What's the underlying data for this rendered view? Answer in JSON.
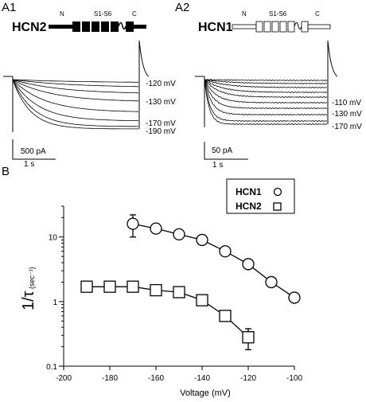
{
  "panelA1": {
    "label": "A1",
    "channel": "HCN2",
    "domain_N": "N",
    "domain_mid": "S1-S6",
    "domain_C": "C",
    "voltages": [
      "-120 mV",
      "-130 mV",
      "-170 mV",
      "-190 mV"
    ],
    "scale_y": "500 pA",
    "scale_x": "1 s"
  },
  "panelA2": {
    "label": "A2",
    "channel": "HCN1",
    "domain_N": "N",
    "domain_mid": "S1-S6",
    "domain_C": "C",
    "voltages": [
      "-110 mV",
      "-130 mV",
      "-170 mV"
    ],
    "scale_y": "50 pA",
    "scale_x": "1 s"
  },
  "panelB": {
    "label": "B",
    "legend": [
      {
        "name": "HCN1",
        "marker": "circle"
      },
      {
        "name": "HCN2",
        "marker": "square"
      }
    ],
    "ylabel_main": "1/τ",
    "ylabel_unit": "(sec⁻¹)",
    "xlabel": "Voltage (mV)"
  },
  "chart_data": {
    "type": "scatter",
    "xlabel": "Voltage (mV)",
    "ylabel": "1/τ (sec⁻¹)",
    "xlim": [
      -200,
      -100
    ],
    "ylim": [
      0.1,
      30
    ],
    "yscale": "log",
    "x_ticks": [
      "-200",
      "-180",
      "-160",
      "-140",
      "-120",
      "-100"
    ],
    "y_ticks": [
      "0.1",
      "1",
      "10"
    ],
    "legend_position": "top-right",
    "series": [
      {
        "name": "HCN1",
        "marker": "circle",
        "x": [
          -170,
          -160,
          -150,
          -140,
          -130,
          -120,
          -110,
          -100
        ],
        "y": [
          16,
          13.5,
          11,
          9,
          6,
          3.8,
          2,
          1.15
        ],
        "err": [
          6,
          2,
          0,
          0,
          0,
          0,
          0,
          0
        ]
      },
      {
        "name": "HCN2",
        "marker": "square",
        "x": [
          -190,
          -180,
          -170,
          -160,
          -150,
          -140,
          -130,
          -120
        ],
        "y": [
          1.7,
          1.7,
          1.7,
          1.5,
          1.4,
          1.05,
          0.6,
          0.28
        ],
        "err": [
          0,
          0,
          0,
          0,
          0,
          0,
          0,
          0.1
        ]
      }
    ]
  }
}
